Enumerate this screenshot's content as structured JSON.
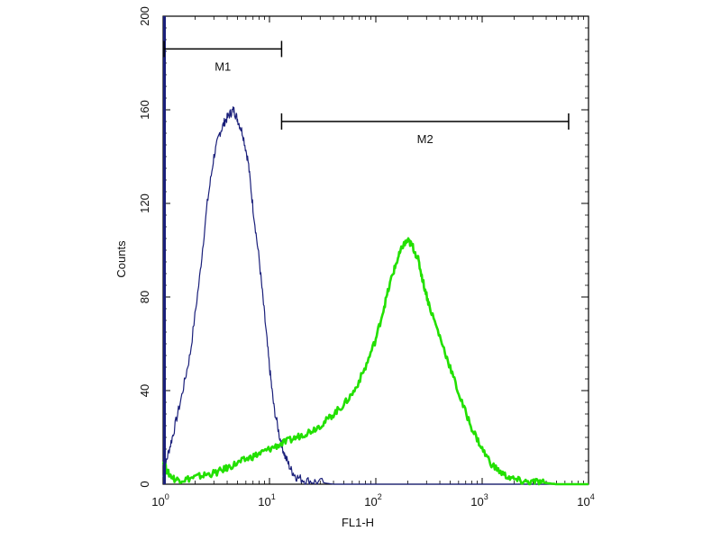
{
  "chart_data": {
    "type": "line",
    "xlabel": "FL1-H",
    "ylabel": "Counts",
    "x_scale": "log",
    "xlim": [
      1,
      10000
    ],
    "ylim": [
      0,
      200
    ],
    "x_ticks": [
      {
        "base": "10",
        "exp": "0",
        "value": 1
      },
      {
        "base": "10",
        "exp": "1",
        "value": 10
      },
      {
        "base": "10",
        "exp": "2",
        "value": 100
      },
      {
        "base": "10",
        "exp": "3",
        "value": 1000
      },
      {
        "base": "10",
        "exp": "4",
        "value": 10000
      }
    ],
    "y_ticks": [
      "0",
      "40",
      "80",
      "120",
      "160",
      "200"
    ],
    "grid": false,
    "series": [
      {
        "color": "#1a1f7a",
        "x": [
          1.0,
          1.1,
          1.25,
          1.5,
          1.8,
          2.2,
          2.6,
          3.0,
          3.4,
          3.8,
          4.2,
          4.6,
          5.0,
          5.6,
          6.3,
          7.0,
          8.0,
          9.0,
          10.0,
          11.0,
          12.5,
          14.0,
          16.0,
          18.0,
          22.0,
          28.0,
          40.0,
          100.0,
          1000.0,
          10000.0
        ],
        "y": [
          3,
          12,
          22,
          38,
          56,
          88,
          120,
          140,
          150,
          155,
          158,
          160,
          156,
          150,
          138,
          118,
          96,
          72,
          50,
          33,
          20,
          12,
          6,
          3,
          1.5,
          1,
          0,
          0,
          0,
          0
        ]
      },
      {
        "color": "#22e000",
        "x": [
          1.0,
          1.1,
          1.3,
          1.6,
          2.0,
          2.5,
          3.2,
          4.0,
          5.0,
          6.3,
          8.0,
          10.0,
          12.5,
          16.0,
          20.0,
          25.0,
          32.0,
          40.0,
          50.0,
          63.0,
          80.0,
          100.0,
          120.0,
          140.0,
          160.0,
          180.0,
          200.0,
          220.0,
          250.0,
          280.0,
          320.0,
          400.0,
          500.0,
          630.0,
          800.0,
          1000.0,
          1250.0,
          1600.0,
          2000.0,
          2500.0,
          3200.0,
          4000.0,
          5000.0,
          6300.0,
          8000.0,
          10000.0
        ],
        "y": [
          10,
          5,
          2,
          2,
          3,
          4,
          5,
          7,
          9,
          11,
          13,
          15,
          17,
          19,
          21,
          23,
          26,
          30,
          34,
          40,
          50,
          62,
          76,
          88,
          96,
          102,
          104,
          102,
          96,
          86,
          76,
          63,
          50,
          36,
          24,
          15,
          8,
          4,
          2,
          1,
          1,
          0.5,
          0,
          0,
          0,
          0
        ]
      }
    ],
    "markers": [
      {
        "label": "M1",
        "x_start": 1.02,
        "x_end": 13,
        "y": 186
      },
      {
        "label": "M2",
        "x_start": 13,
        "x_end": 6500,
        "y": 155
      }
    ]
  }
}
